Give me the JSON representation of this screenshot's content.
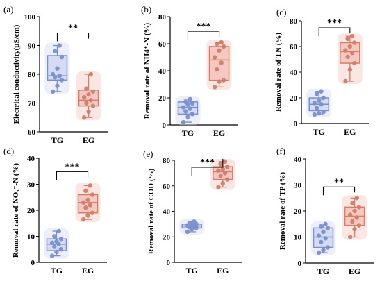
{
  "chart_data": [
    {
      "type": "box",
      "panel": "(a)",
      "ylabel": "Electrical conductivity(μS/cm)",
      "ylim": [
        60,
        100
      ],
      "yticks": [
        60,
        70,
        80,
        90,
        100
      ],
      "categories": [
        "TG",
        "EG"
      ],
      "significance": "**",
      "series": [
        {
          "name": "TG",
          "color": "#7b8fcf",
          "fill": "#d4dbf2",
          "q1": 78,
          "median": 79.5,
          "q3": 86.5,
          "min": 74,
          "max": 90,
          "points": [
            74,
            76,
            78,
            79,
            79.5,
            80,
            82,
            86,
            88,
            90
          ]
        },
        {
          "name": "EG",
          "color": "#cf7f6a",
          "fill": "#f5c9c2",
          "q1": 69,
          "median": 71,
          "q3": 74.5,
          "min": 65,
          "max": 80,
          "points": [
            65,
            67,
            69,
            70,
            71,
            72,
            73,
            74,
            75,
            80
          ]
        }
      ]
    },
    {
      "type": "box",
      "panel": "(b)",
      "ylabel": "Removal rate of NH4⁺-N (%)",
      "ylim": [
        0,
        80
      ],
      "yticks": [
        0,
        20,
        40,
        60,
        80
      ],
      "categories": [
        "TG",
        "EG"
      ],
      "significance": "***",
      "series": [
        {
          "name": "TG",
          "color": "#7b8fcf",
          "fill": "#d4dbf2",
          "q1": 8,
          "median": 13,
          "q3": 17,
          "min": 2,
          "max": 19,
          "points": [
            2,
            6,
            8,
            10,
            12,
            13,
            15,
            16,
            17,
            19
          ]
        },
        {
          "name": "EG",
          "color": "#cf7f6a",
          "fill": "#f5c9c2",
          "q1": 33,
          "median": 48,
          "q3": 58,
          "min": 28,
          "max": 61,
          "points": [
            28,
            32,
            33,
            41,
            46,
            50,
            55,
            58,
            60,
            61
          ]
        }
      ]
    },
    {
      "type": "box",
      "panel": "(c)",
      "ylabel": "Removal rate of TN (%)",
      "ylim": [
        0,
        80
      ],
      "yticks": [
        0,
        20,
        40,
        60,
        80
      ],
      "categories": [
        "TG",
        "EG"
      ],
      "significance": "***",
      "series": [
        {
          "name": "TG",
          "color": "#7b8fcf",
          "fill": "#d4dbf2",
          "q1": 10,
          "median": 15,
          "q3": 20,
          "min": 7,
          "max": 25,
          "points": [
            7,
            8,
            9,
            12,
            15,
            16,
            18,
            20,
            23,
            25
          ]
        },
        {
          "name": "EG",
          "color": "#cf7f6a",
          "fill": "#f5c9c2",
          "q1": 47,
          "median": 56,
          "q3": 63,
          "min": 33,
          "max": 68,
          "points": [
            33,
            42,
            47,
            52,
            55,
            57,
            60,
            63,
            66,
            68
          ]
        }
      ]
    },
    {
      "type": "box",
      "panel": "(d)",
      "ylabel": "Removal rate of NO₃⁻-N (%)",
      "ylim": [
        0,
        40
      ],
      "yticks": [
        0,
        10,
        20,
        30,
        40
      ],
      "categories": [
        "TG",
        "EG"
      ],
      "significance": "***",
      "series": [
        {
          "name": "TG",
          "color": "#7b8fcf",
          "fill": "#d4dbf2",
          "q1": 4.5,
          "median": 7,
          "q3": 9,
          "min": 2.5,
          "max": 12,
          "points": [
            2.5,
            4,
            5,
            6,
            7,
            7.5,
            8,
            9,
            10,
            12
          ]
        },
        {
          "name": "EG",
          "color": "#cf7f6a",
          "fill": "#f5c9c2",
          "q1": 19,
          "median": 23,
          "q3": 26,
          "min": 16.5,
          "max": 29.5,
          "points": [
            16.5,
            18,
            19,
            21,
            22,
            23,
            24,
            26,
            27.5,
            29.5
          ]
        }
      ]
    },
    {
      "type": "box",
      "panel": "(e)",
      "ylabel": "Removal rate of COD (%)",
      "ylim": [
        0,
        80
      ],
      "yticks": [
        0,
        20,
        40,
        60,
        80
      ],
      "categories": [
        "TG",
        "EG"
      ],
      "significance": "***",
      "series": [
        {
          "name": "TG",
          "color": "#7b8fcf",
          "fill": "#d4dbf2",
          "q1": 27,
          "median": 28.5,
          "q3": 30,
          "min": 24,
          "max": 32,
          "points": [
            24,
            26,
            27,
            27.5,
            28,
            29,
            29.5,
            30,
            31,
            32
          ]
        },
        {
          "name": "EG",
          "color": "#cf7f6a",
          "fill": "#f5c9c2",
          "q1": 65,
          "median": 71,
          "q3": 75,
          "min": 59,
          "max": 79,
          "points": [
            59,
            62,
            65,
            68,
            70,
            72,
            73,
            75,
            77,
            79
          ]
        }
      ]
    },
    {
      "type": "box",
      "panel": "(f)",
      "ylabel": "Removal rate of TP (%)",
      "ylim": [
        0,
        40
      ],
      "yticks": [
        0,
        10,
        20,
        30,
        40
      ],
      "categories": [
        "TG",
        "EG"
      ],
      "significance": "**",
      "series": [
        {
          "name": "TG",
          "color": "#7b8fcf",
          "fill": "#d4dbf2",
          "q1": 6,
          "median": 10,
          "q3": 13.5,
          "min": 4,
          "max": 15,
          "points": [
            4,
            5,
            6,
            8,
            9.5,
            10.5,
            12,
            13.5,
            14,
            15
          ]
        },
        {
          "name": "EG",
          "color": "#cf7f6a",
          "fill": "#f5c9c2",
          "q1": 14.5,
          "median": 18,
          "q3": 21.5,
          "min": 10,
          "max": 25,
          "points": [
            10,
            13,
            14.5,
            16,
            17.5,
            18.5,
            20,
            21.5,
            23,
            25
          ]
        }
      ]
    }
  ]
}
